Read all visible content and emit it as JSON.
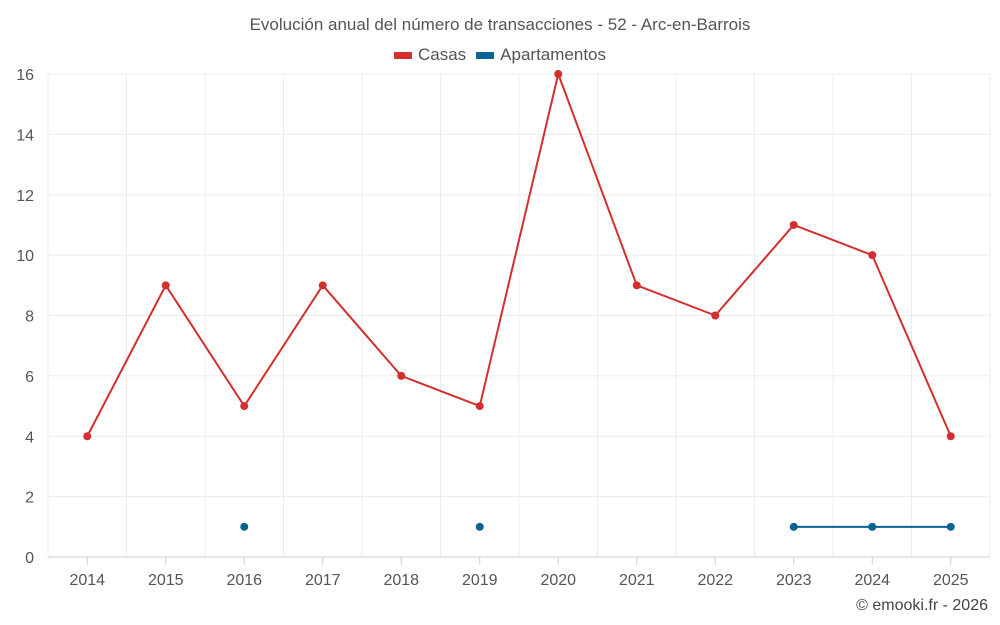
{
  "chart_data": {
    "type": "line",
    "title": "Evolución anual del número de transacciones - 52 - Arc-en-Barrois",
    "xlabel": "",
    "ylabel": "",
    "categories": [
      "2014",
      "2015",
      "2016",
      "2017",
      "2018",
      "2019",
      "2020",
      "2021",
      "2022",
      "2023",
      "2024",
      "2025"
    ],
    "ylim": [
      0,
      16
    ],
    "yticks": [
      0,
      2,
      4,
      6,
      8,
      10,
      12,
      14,
      16
    ],
    "grid": true,
    "legend_position": "top-center",
    "series": [
      {
        "name": "Casas",
        "color": "#d32f2f",
        "values": [
          4,
          9,
          5,
          9,
          6,
          5,
          16,
          9,
          8,
          11,
          10,
          4
        ]
      },
      {
        "name": "Apartamentos",
        "color": "#0b6394",
        "values": [
          null,
          null,
          1,
          null,
          null,
          1,
          null,
          null,
          null,
          1,
          1,
          1
        ]
      }
    ]
  },
  "footer": {
    "credit": "© emooki.fr - 2026"
  }
}
